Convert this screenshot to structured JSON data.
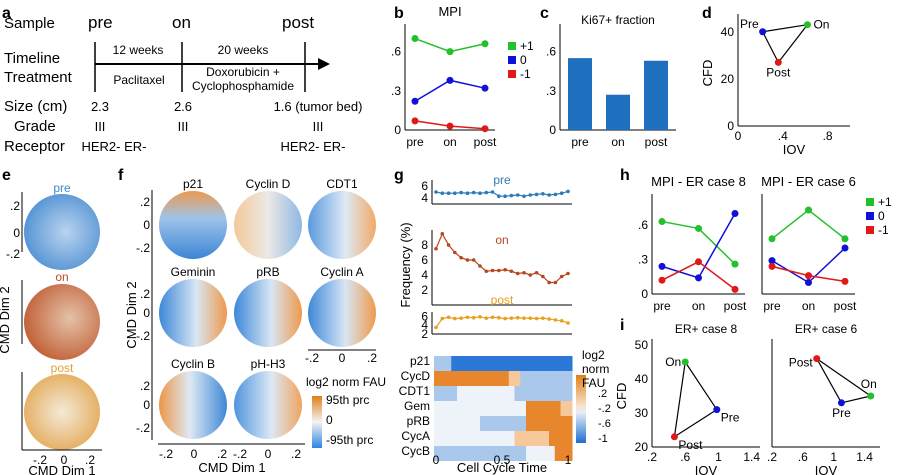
{
  "panel_letters": [
    "a",
    "b",
    "c",
    "d",
    "e",
    "f",
    "g",
    "h",
    "i"
  ],
  "colors": {
    "green": "#22c02a",
    "blue": "#1010d8",
    "red": "#e01818",
    "bar": "#1f6fbf",
    "ring_blue": "#4a8fd0",
    "ring_orange": "#e89a50",
    "ring_rust": "#c0552a"
  },
  "panel_a": {
    "row_labels": [
      "Sample",
      "Timeline",
      "Treatment",
      "Size (cm)",
      "Grade",
      "Receptor"
    ],
    "samples": [
      "pre",
      "on",
      "post"
    ],
    "timeline": [
      "12 weeks",
      "20 weeks"
    ],
    "treatments": [
      "Paclitaxel",
      "Doxorubicin +",
      "Cyclophosphamide"
    ],
    "sizes": [
      "2.3",
      "2.6",
      "1.6 (tumor bed)"
    ],
    "grades": [
      "III",
      "III",
      "III"
    ],
    "receptors": [
      "HER2- ER-",
      "HER2- ER-"
    ]
  },
  "panel_e": {
    "titles": [
      "pre",
      "on",
      "post"
    ],
    "ylabel": "CMD Dim 2",
    "xlabel": "CMD Dim 1",
    "yticks": [
      ".2",
      "0",
      "-.2"
    ],
    "xticks": [
      "-.2",
      "0",
      ".2"
    ]
  },
  "panel_f": {
    "markers": [
      "p21",
      "Cyclin D",
      "CDT1",
      "Geminin",
      "pRB",
      "Cyclin A",
      "Cyclin B",
      "pH-H3"
    ],
    "ylabel": "CMD Dim 2",
    "xlabel": "CMD Dim 1",
    "yticks": [
      ".2",
      "0",
      "-.2"
    ],
    "xticks": [
      "-.2",
      "0",
      ".2"
    ],
    "legend_title": "log2 norm FAU",
    "legend_labels": [
      "95th prc",
      "0",
      "-95th prc"
    ]
  },
  "panel_g": {
    "ylabel": "Frequency (%)",
    "xlabel": "Cell Cycle Time",
    "heat_rows": [
      "p21",
      "CycD",
      "CDT1",
      "Gem",
      "pRB",
      "CycA",
      "CycB"
    ],
    "cb_title": [
      "log2",
      "norm",
      "FAU"
    ],
    "cb_ticks": [
      ".2",
      "-.2",
      "-.6",
      "-1"
    ]
  },
  "chart_data": [
    {
      "id": "b",
      "type": "line",
      "title": "MPI",
      "categories": [
        "pre",
        "on",
        "post"
      ],
      "series": [
        {
          "name": "+1",
          "values": [
            0.7,
            0.6,
            0.66
          ]
        },
        {
          "name": "0",
          "values": [
            0.22,
            0.38,
            0.32
          ]
        },
        {
          "name": "-1",
          "values": [
            0.07,
            0.03,
            0.01
          ]
        }
      ],
      "ylim": [
        0,
        0.75
      ],
      "yticks": [
        "0",
        ".3",
        ".6"
      ]
    },
    {
      "id": "c",
      "type": "bar",
      "title": "Ki67+ fraction",
      "categories": [
        "pre",
        "on",
        "post"
      ],
      "values": [
        0.55,
        0.27,
        0.53
      ],
      "ylim": [
        0,
        0.75
      ],
      "yticks": [
        "0",
        ".3",
        ".6"
      ]
    },
    {
      "id": "d",
      "type": "scatter",
      "xlabel": "IOV",
      "ylabel": "CFD",
      "points": [
        {
          "label": "Pre",
          "x": 0.22,
          "y": 40
        },
        {
          "label": "On",
          "x": 0.62,
          "y": 43
        },
        {
          "label": "Post",
          "x": 0.36,
          "y": 27
        }
      ],
      "xlim": [
        0,
        1.0
      ],
      "ylim": [
        0,
        45
      ],
      "xticks": [
        "0",
        ".4",
        ".8"
      ],
      "yticks": [
        "0",
        "20",
        "40"
      ]
    },
    {
      "id": "g",
      "type": "line",
      "xlim": [
        0,
        1
      ],
      "xticks": [
        "0",
        "0.5",
        "1"
      ],
      "series": [
        {
          "name": "pre",
          "values": [
            5,
            4.8,
            4.8,
            4.8,
            4.9,
            4.8,
            4.9,
            4.8,
            4.9,
            5.0,
            4.3,
            4.3,
            4.4,
            4.5,
            4.3,
            4.5,
            4.6,
            4.7,
            4.5,
            4.6,
            4.8,
            5.1
          ],
          "ylim": [
            3,
            7
          ],
          "yticks": [
            "4",
            "6"
          ]
        },
        {
          "name": "on",
          "values": [
            7.5,
            9.5,
            8.0,
            7.0,
            6.3,
            6.0,
            6.0,
            5.2,
            4.5,
            4.6,
            4.6,
            4.7,
            4.5,
            4.2,
            4.3,
            4.0,
            4.3,
            3.8,
            3.0,
            3.0,
            3.8,
            4.2
          ],
          "ylim": [
            0,
            10
          ],
          "yticks": [
            "2",
            "4",
            "6",
            "8"
          ]
        },
        {
          "name": "post",
          "values": [
            3.5,
            5.5,
            5.8,
            5.5,
            5.6,
            5.8,
            5.7,
            5.9,
            5.6,
            5.8,
            5.7,
            5.5,
            5.6,
            5.7,
            5.6,
            5.6,
            5.5,
            5.6,
            5.4,
            5.2,
            5.0,
            4.5
          ],
          "ylim": [
            2,
            7
          ],
          "yticks": [
            "2",
            "4",
            "6"
          ]
        }
      ]
    },
    {
      "id": "h1",
      "type": "line",
      "title": "MPI - ER case 8",
      "categories": [
        "pre",
        "on",
        "post"
      ],
      "series": [
        {
          "name": "+1",
          "values": [
            0.63,
            0.57,
            0.26
          ]
        },
        {
          "name": "0",
          "values": [
            0.24,
            0.14,
            0.7
          ]
        },
        {
          "name": "-1",
          "values": [
            0.12,
            0.28,
            0.04
          ]
        }
      ],
      "ylim": [
        0,
        0.8
      ],
      "yticks": [
        "0",
        ".3",
        ".6"
      ]
    },
    {
      "id": "h2",
      "type": "line",
      "title": "MPI - ER case 6",
      "categories": [
        "pre",
        "on",
        "post"
      ],
      "series": [
        {
          "name": "+1",
          "values": [
            0.48,
            0.73,
            0.48
          ]
        },
        {
          "name": "0",
          "values": [
            0.29,
            0.1,
            0.4
          ]
        },
        {
          "name": "-1",
          "values": [
            0.24,
            0.16,
            0.11
          ]
        }
      ],
      "ylim": [
        0,
        0.8
      ]
    },
    {
      "id": "i1",
      "type": "scatter",
      "title": "ER+ case 8",
      "xlabel": "IOV",
      "ylabel": "CFD",
      "points": [
        {
          "label": "On",
          "x": 0.6,
          "y": 45
        },
        {
          "label": "Pre",
          "x": 0.98,
          "y": 31
        },
        {
          "label": "Post",
          "x": 0.47,
          "y": 23
        }
      ],
      "xlim": [
        0.2,
        1.5
      ],
      "ylim": [
        20,
        50
      ],
      "xticks": [
        ".2",
        ".6",
        "1",
        "1.4"
      ],
      "yticks": [
        "20",
        "30",
        "40",
        "50"
      ]
    },
    {
      "id": "i2",
      "type": "scatter",
      "title": "ER+ case 6",
      "xlabel": "IOV",
      "points": [
        {
          "label": "Post",
          "x": 0.78,
          "y": 46
        },
        {
          "label": "On",
          "x": 1.48,
          "y": 35
        },
        {
          "label": "Pre",
          "x": 1.1,
          "y": 33
        }
      ],
      "xlim": [
        0.2,
        1.6
      ],
      "ylim": [
        20,
        50
      ],
      "xticks": [
        ".2",
        ".6",
        "1",
        "1.4"
      ]
    }
  ]
}
